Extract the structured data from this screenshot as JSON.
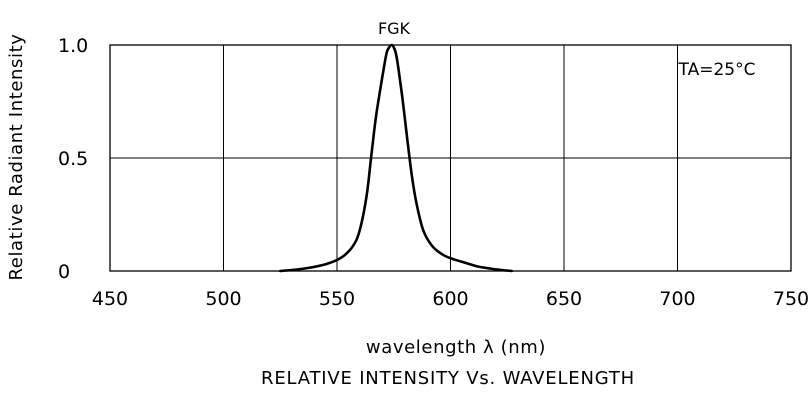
{
  "chart_data": {
    "type": "line",
    "title": "RELATIVE INTENSITY Vs. WAVELENGTH",
    "xlabel": "wavelength λ  (nm)",
    "ylabel": "Relative Radiant Intensity",
    "annotation": "TA=25°C",
    "xlim": [
      450,
      750
    ],
    "ylim": [
      0,
      1.0
    ],
    "x_ticks": [
      "450",
      "500",
      "550",
      "600",
      "650",
      "700",
      "750"
    ],
    "y_ticks": [
      "0",
      "0.5",
      "1.0"
    ],
    "grid": true,
    "series": [
      {
        "name": "FGK",
        "x": [
          525,
          535,
          545,
          552,
          557,
          560,
          563,
          565,
          567,
          569,
          571,
          572,
          573,
          574,
          575,
          576,
          577,
          579,
          581,
          583,
          585,
          588,
          592,
          597,
          602,
          607,
          612,
          618,
          622,
          627
        ],
        "y": [
          0.0,
          0.01,
          0.03,
          0.06,
          0.11,
          0.18,
          0.33,
          0.5,
          0.67,
          0.8,
          0.92,
          0.97,
          0.99,
          1.0,
          0.99,
          0.96,
          0.9,
          0.75,
          0.58,
          0.42,
          0.3,
          0.18,
          0.11,
          0.07,
          0.05,
          0.035,
          0.02,
          0.01,
          0.005,
          0.0
        ]
      }
    ]
  },
  "colors": {
    "line": "#000000",
    "grid": "#000000",
    "background": "#ffffff"
  }
}
